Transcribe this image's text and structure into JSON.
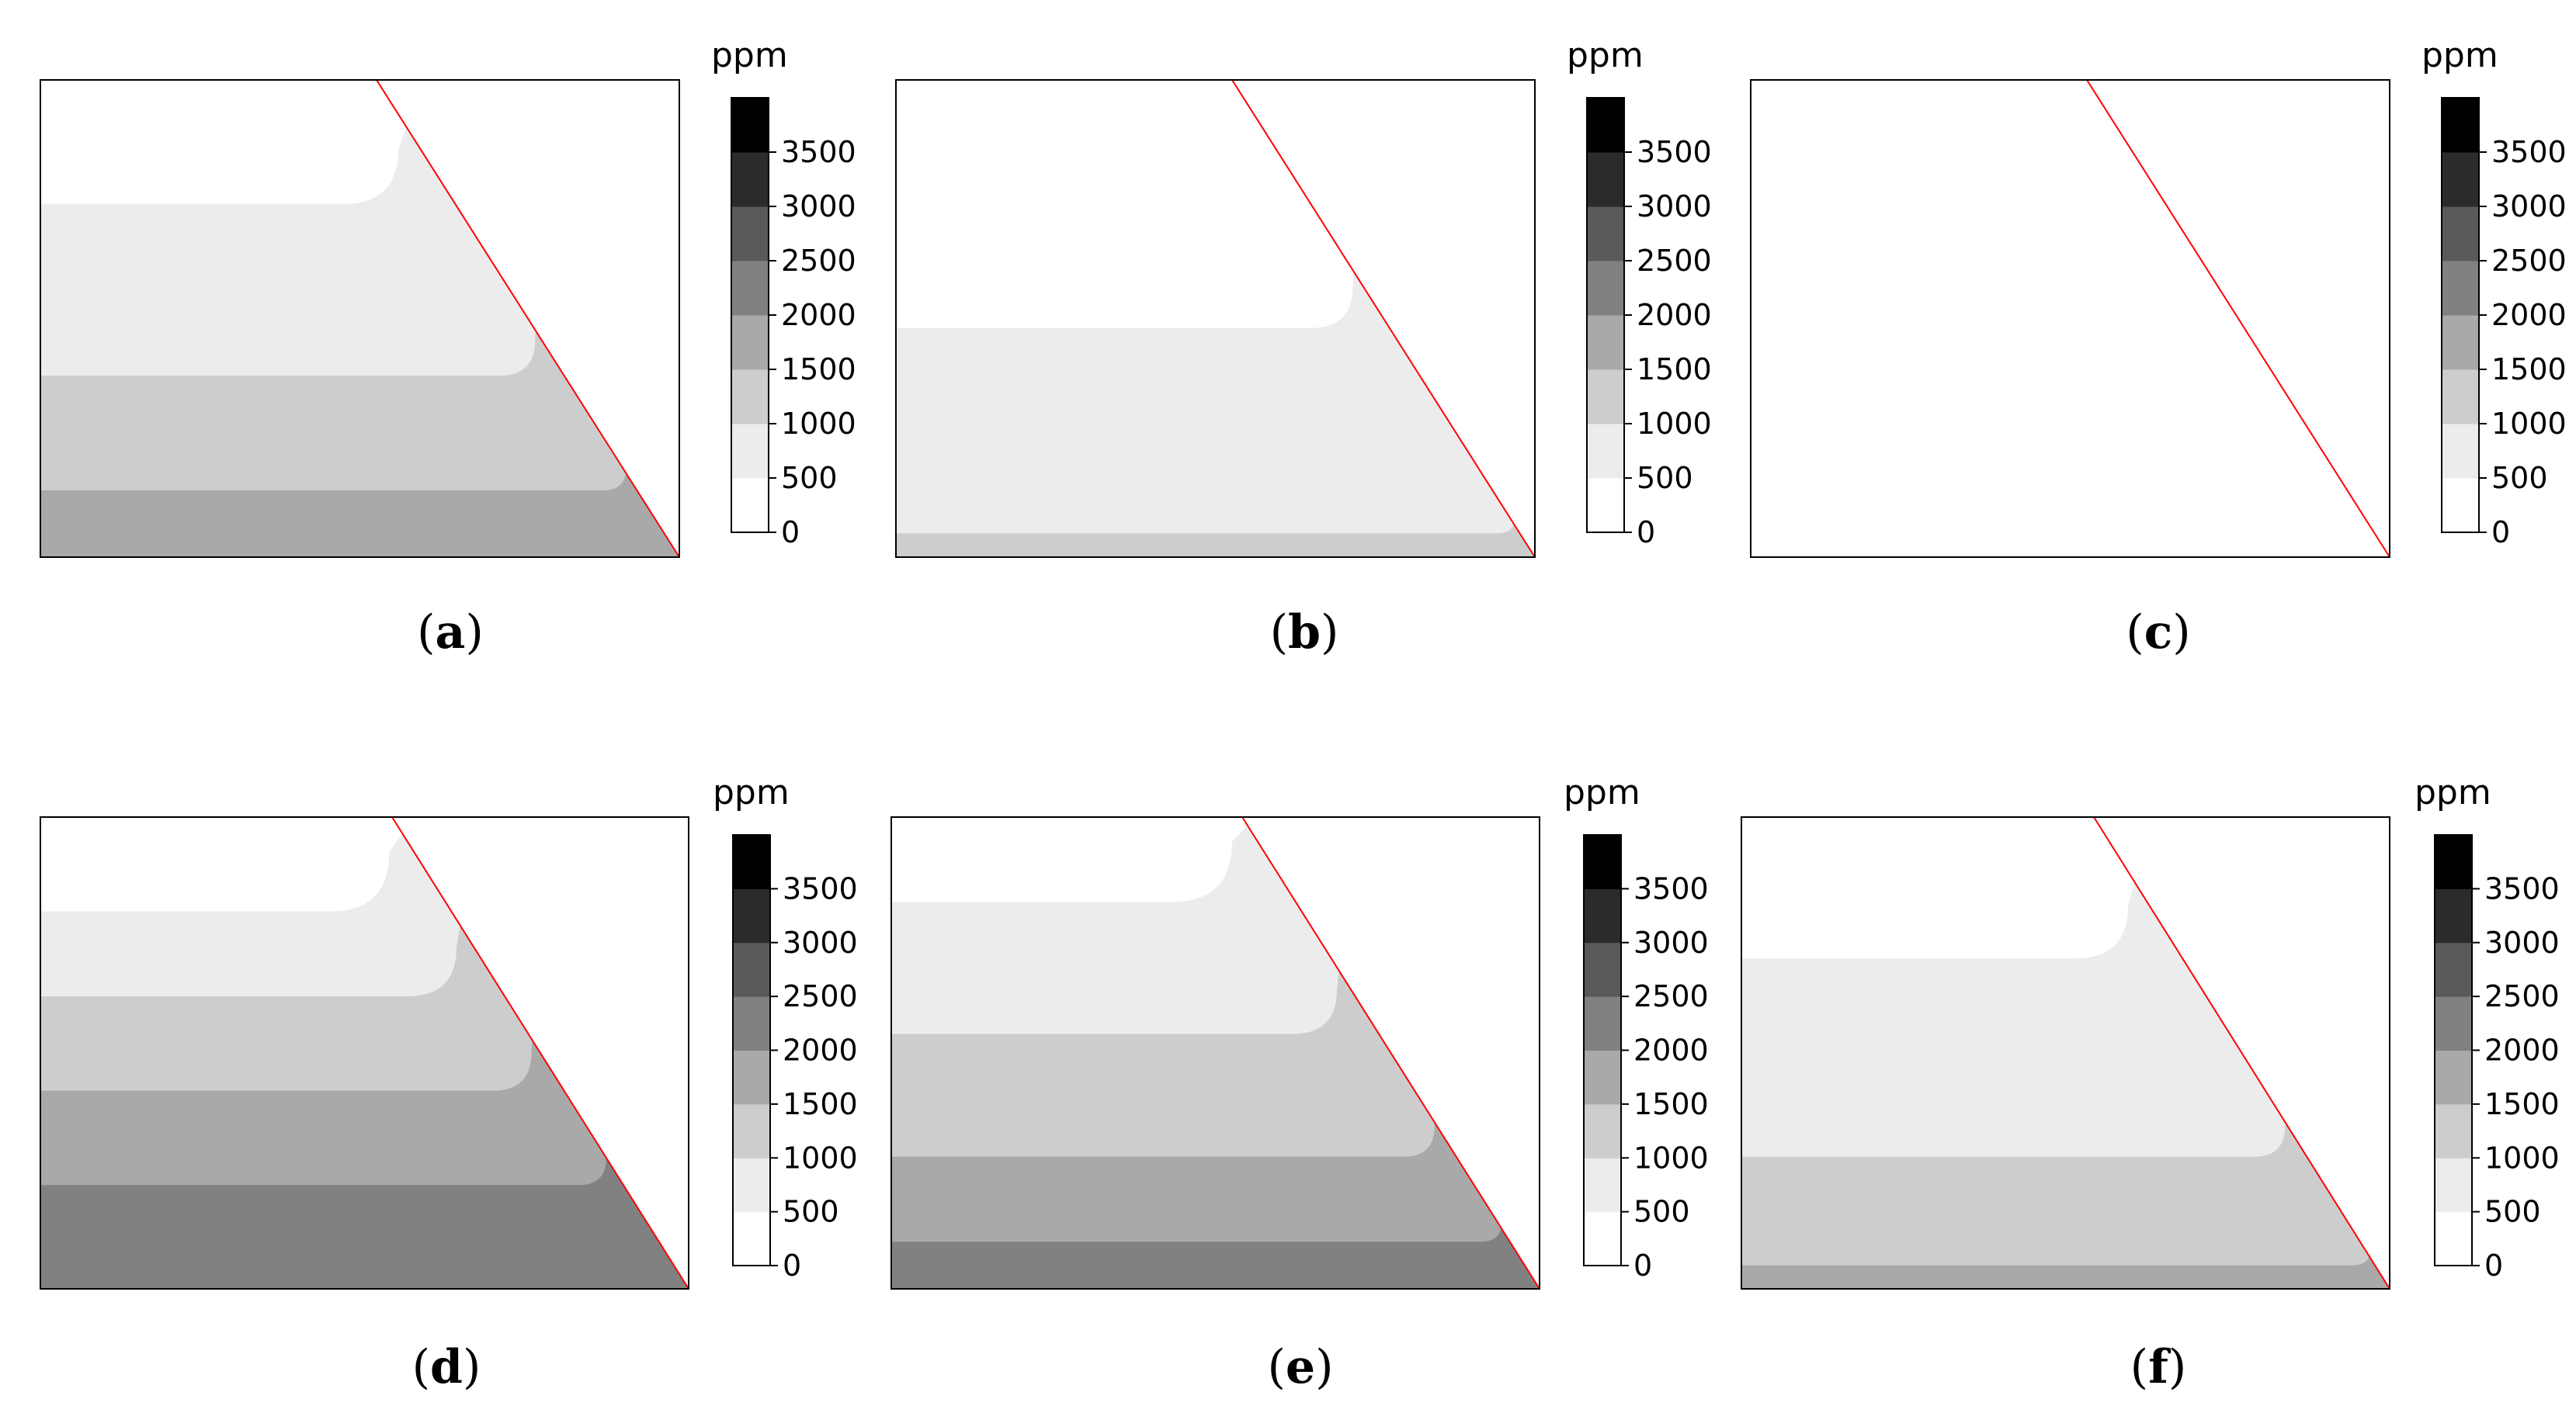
{
  "chart_data": [
    {
      "type": "heatmap",
      "caption_letter": "a",
      "colorbar": {
        "label": "ppm",
        "ticks": [
          0,
          500,
          1000,
          1500,
          2000,
          2500,
          3000,
          3500
        ],
        "bands": [
          {
            "range": [
              0,
              500
            ],
            "color": "#ffffff"
          },
          {
            "range": [
              500,
              1000
            ],
            "color": "#ececec"
          },
          {
            "range": [
              1000,
              1500
            ],
            "color": "#cdcdcd"
          },
          {
            "range": [
              1500,
              2000
            ],
            "color": "#a9a9a9"
          },
          {
            "range": [
              2000,
              2500
            ],
            "color": "#818181"
          },
          {
            "range": [
              2500,
              3000
            ],
            "color": "#5a5a5a"
          },
          {
            "range": [
              3000,
              3500
            ],
            "color": "#2b2b2b"
          },
          {
            "range": [
              3500,
              4000
            ],
            "color": "#000000"
          }
        ]
      },
      "contour_depths": [
        0.26,
        0.62,
        0.86
      ]
    },
    {
      "type": "heatmap",
      "caption_letter": "b",
      "colorbar": {
        "label": "ppm",
        "ticks": [
          0,
          500,
          1000,
          1500,
          2000,
          2500,
          3000,
          3500
        ]
      },
      "contour_depths": [
        0.52,
        0.95
      ]
    },
    {
      "type": "heatmap",
      "caption_letter": "c",
      "colorbar": {
        "label": "ppm",
        "ticks": [
          0,
          500,
          1000,
          1500,
          2000,
          2500,
          3000,
          3500
        ]
      },
      "contour_depths": []
    },
    {
      "type": "heatmap",
      "caption_letter": "d",
      "colorbar": {
        "label": "ppm",
        "ticks": [
          0,
          500,
          1000,
          1500,
          2000,
          2500,
          3000,
          3500
        ]
      },
      "contour_depths": [
        0.2,
        0.38,
        0.58,
        0.78
      ]
    },
    {
      "type": "heatmap",
      "caption_letter": "e",
      "colorbar": {
        "label": "ppm",
        "ticks": [
          0,
          500,
          1000,
          1500,
          2000,
          2500,
          3000,
          3500
        ]
      },
      "contour_depths": [
        0.18,
        0.46,
        0.72,
        0.9
      ]
    },
    {
      "type": "heatmap",
      "caption_letter": "f",
      "colorbar": {
        "label": "ppm",
        "ticks": [
          0,
          500,
          1000,
          1500,
          2000,
          2500,
          3000,
          3500
        ]
      },
      "contour_depths": [
        0.3,
        0.72,
        0.95
      ]
    }
  ],
  "colors": {
    "boundary_line": "#ff0000",
    "frame": "#000000"
  }
}
